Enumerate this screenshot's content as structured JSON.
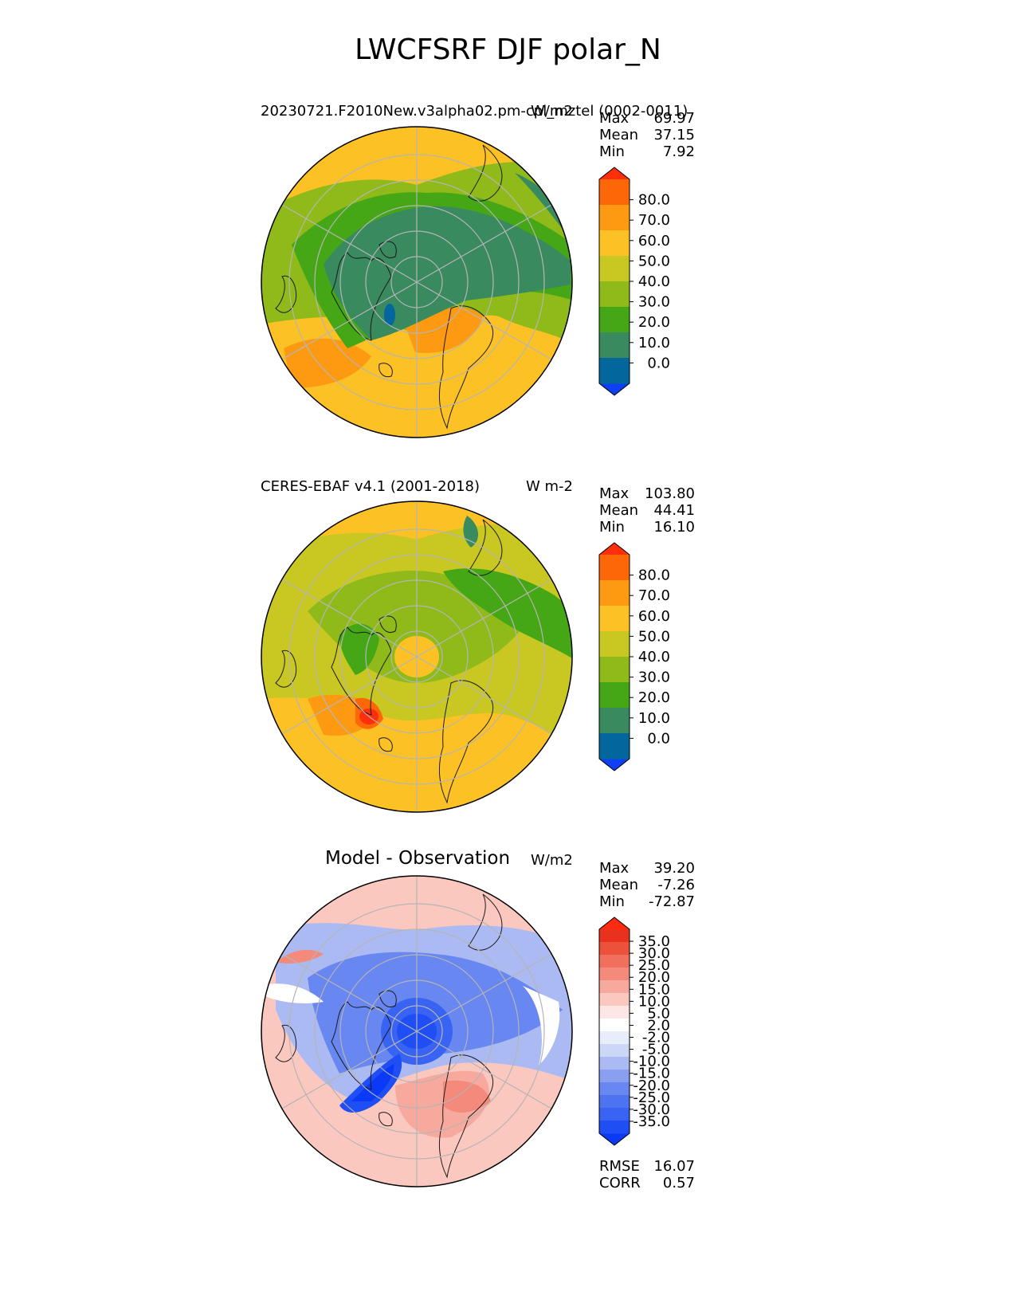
{
  "suptitle": "LWCFSRF DJF polar_N",
  "panels": [
    {
      "title": "20230721.F2010New.v3alpha02.pm-cpl_mztel (0002-0011)",
      "units": "W/m2",
      "stats": [
        {
          "label": "Max",
          "value": "69.97"
        },
        {
          "label": "Mean",
          "value": "37.15"
        },
        {
          "label": "Min",
          "value": "7.92"
        }
      ]
    },
    {
      "title": "CERES-EBAF v4.1 (2001-2018)",
      "units": "W m-2",
      "stats": [
        {
          "label": "Max",
          "value": "103.80"
        },
        {
          "label": "Mean",
          "value": "44.41"
        },
        {
          "label": "Min",
          "value": "16.10"
        }
      ]
    },
    {
      "title": "Model - Observation",
      "units": "W/m2",
      "stats": [
        {
          "label": "Max",
          "value": "39.20"
        },
        {
          "label": "Mean",
          "value": "-7.26"
        },
        {
          "label": "Min",
          "value": "-72.87"
        }
      ],
      "extra_stats": [
        {
          "label": "RMSE",
          "value": "16.07"
        },
        {
          "label": "CORR",
          "value": "0.57"
        }
      ]
    }
  ],
  "chart_data": [
    {
      "type": "heatmap",
      "projection": "north polar stereographic",
      "title": "20230721.F2010New.v3alpha02.pm-cpl_mztel (0002-0011)",
      "units": "W/m2",
      "colorbar": {
        "ticks": [
          "80.0",
          "70.0",
          "60.0",
          "50.0",
          "40.0",
          "30.0",
          "20.0",
          "10.0",
          "0.0"
        ],
        "levels": [
          -10,
          0,
          10,
          20,
          30,
          40,
          50,
          60,
          70,
          80,
          90
        ],
        "colors": [
          "#0e3ff5",
          "#03679e",
          "#398a5f",
          "#45a715",
          "#8fba1a",
          "#c9c721",
          "#fcc124",
          "#fd9a12",
          "#fe6707",
          "#ff2e0c"
        ],
        "extend": "both"
      },
      "summary": {
        "max": 69.97,
        "mean": 37.15,
        "min": 7.92
      }
    },
    {
      "type": "heatmap",
      "projection": "north polar stereographic",
      "title": "CERES-EBAF v4.1 (2001-2018)",
      "units": "W m-2",
      "colorbar": {
        "ticks": [
          "80.0",
          "70.0",
          "60.0",
          "50.0",
          "40.0",
          "30.0",
          "20.0",
          "10.0",
          "0.0"
        ],
        "levels": [
          -10,
          0,
          10,
          20,
          30,
          40,
          50,
          60,
          70,
          80,
          90
        ],
        "colors": [
          "#0e3ff5",
          "#03679e",
          "#398a5f",
          "#45a715",
          "#8fba1a",
          "#c9c721",
          "#fcc124",
          "#fd9a12",
          "#fe6707",
          "#ff2e0c"
        ],
        "extend": "both"
      },
      "summary": {
        "max": 103.8,
        "mean": 44.41,
        "min": 16.1
      }
    },
    {
      "type": "heatmap",
      "projection": "north polar stereographic",
      "title": "Model - Observation",
      "units": "W/m2",
      "colorbar": {
        "ticks": [
          "35.0",
          "30.0",
          "25.0",
          "20.0",
          "15.0",
          "10.0",
          "5.0",
          "2.0",
          "-2.0",
          "-5.0",
          "-10.0",
          "-15.0",
          "-20.0",
          "-25.0",
          "-30.0",
          "-35.0"
        ],
        "colors": [
          "#0a3af5",
          "#1f4ef5",
          "#3963f2",
          "#4d73f1",
          "#6887f0",
          "#8a9ff0",
          "#acbaf3",
          "#ccd6f7",
          "#e8edfb",
          "#ffffff",
          "#fde6e3",
          "#fbc8c0",
          "#f8a99d",
          "#f48a7c",
          "#f06f5d",
          "#ec513c",
          "#e8321e",
          "#ff2a10"
        ],
        "extend": "both"
      },
      "summary": {
        "max": 39.2,
        "mean": -7.26,
        "min": -72.87,
        "rmse": 16.07,
        "corr": 0.57
      }
    }
  ]
}
